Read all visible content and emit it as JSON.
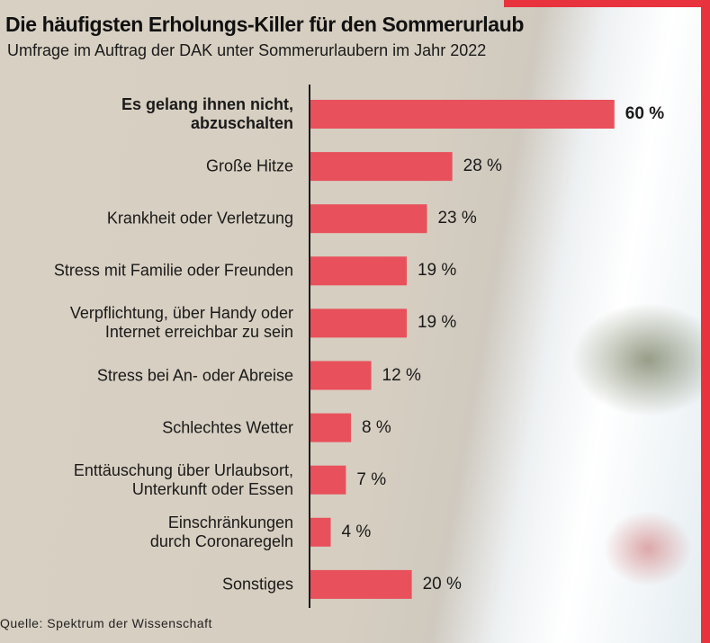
{
  "chart_data": {
    "type": "bar",
    "orientation": "horizontal",
    "title": "Die häufigsten Erholungs-Killer für den Sommerurlaub",
    "subtitle": "Umfrage im Auftrag der DAK unter Sommerurlaubern im Jahr 2022",
    "categories": [
      "Es gelang ihnen nicht,\nabzuschalten",
      "Große Hitze",
      "Krankheit oder Verletzung",
      "Stress mit Familie oder Freunden",
      "Verpflichtung, über Handy oder\nInternet erreichbar zu sein",
      "Stress bei An- oder Abreise",
      "Schlechtes Wetter",
      "Enttäuschung über Urlaubsort,\nUnterkunft oder Essen",
      "Einschränkungen\ndurch Coronaregeln",
      "Sonstiges"
    ],
    "values": [
      60,
      28,
      23,
      19,
      19,
      12,
      8,
      7,
      4,
      20
    ],
    "value_labels": [
      "60 %",
      "28 %",
      "23 %",
      "19 %",
      "19 %",
      "12 %",
      "8 %",
      "7 %",
      "4 %",
      "20 %"
    ],
    "color": "#e8505b",
    "source": "Quelle: Spektrum der Wissenschaft"
  }
}
